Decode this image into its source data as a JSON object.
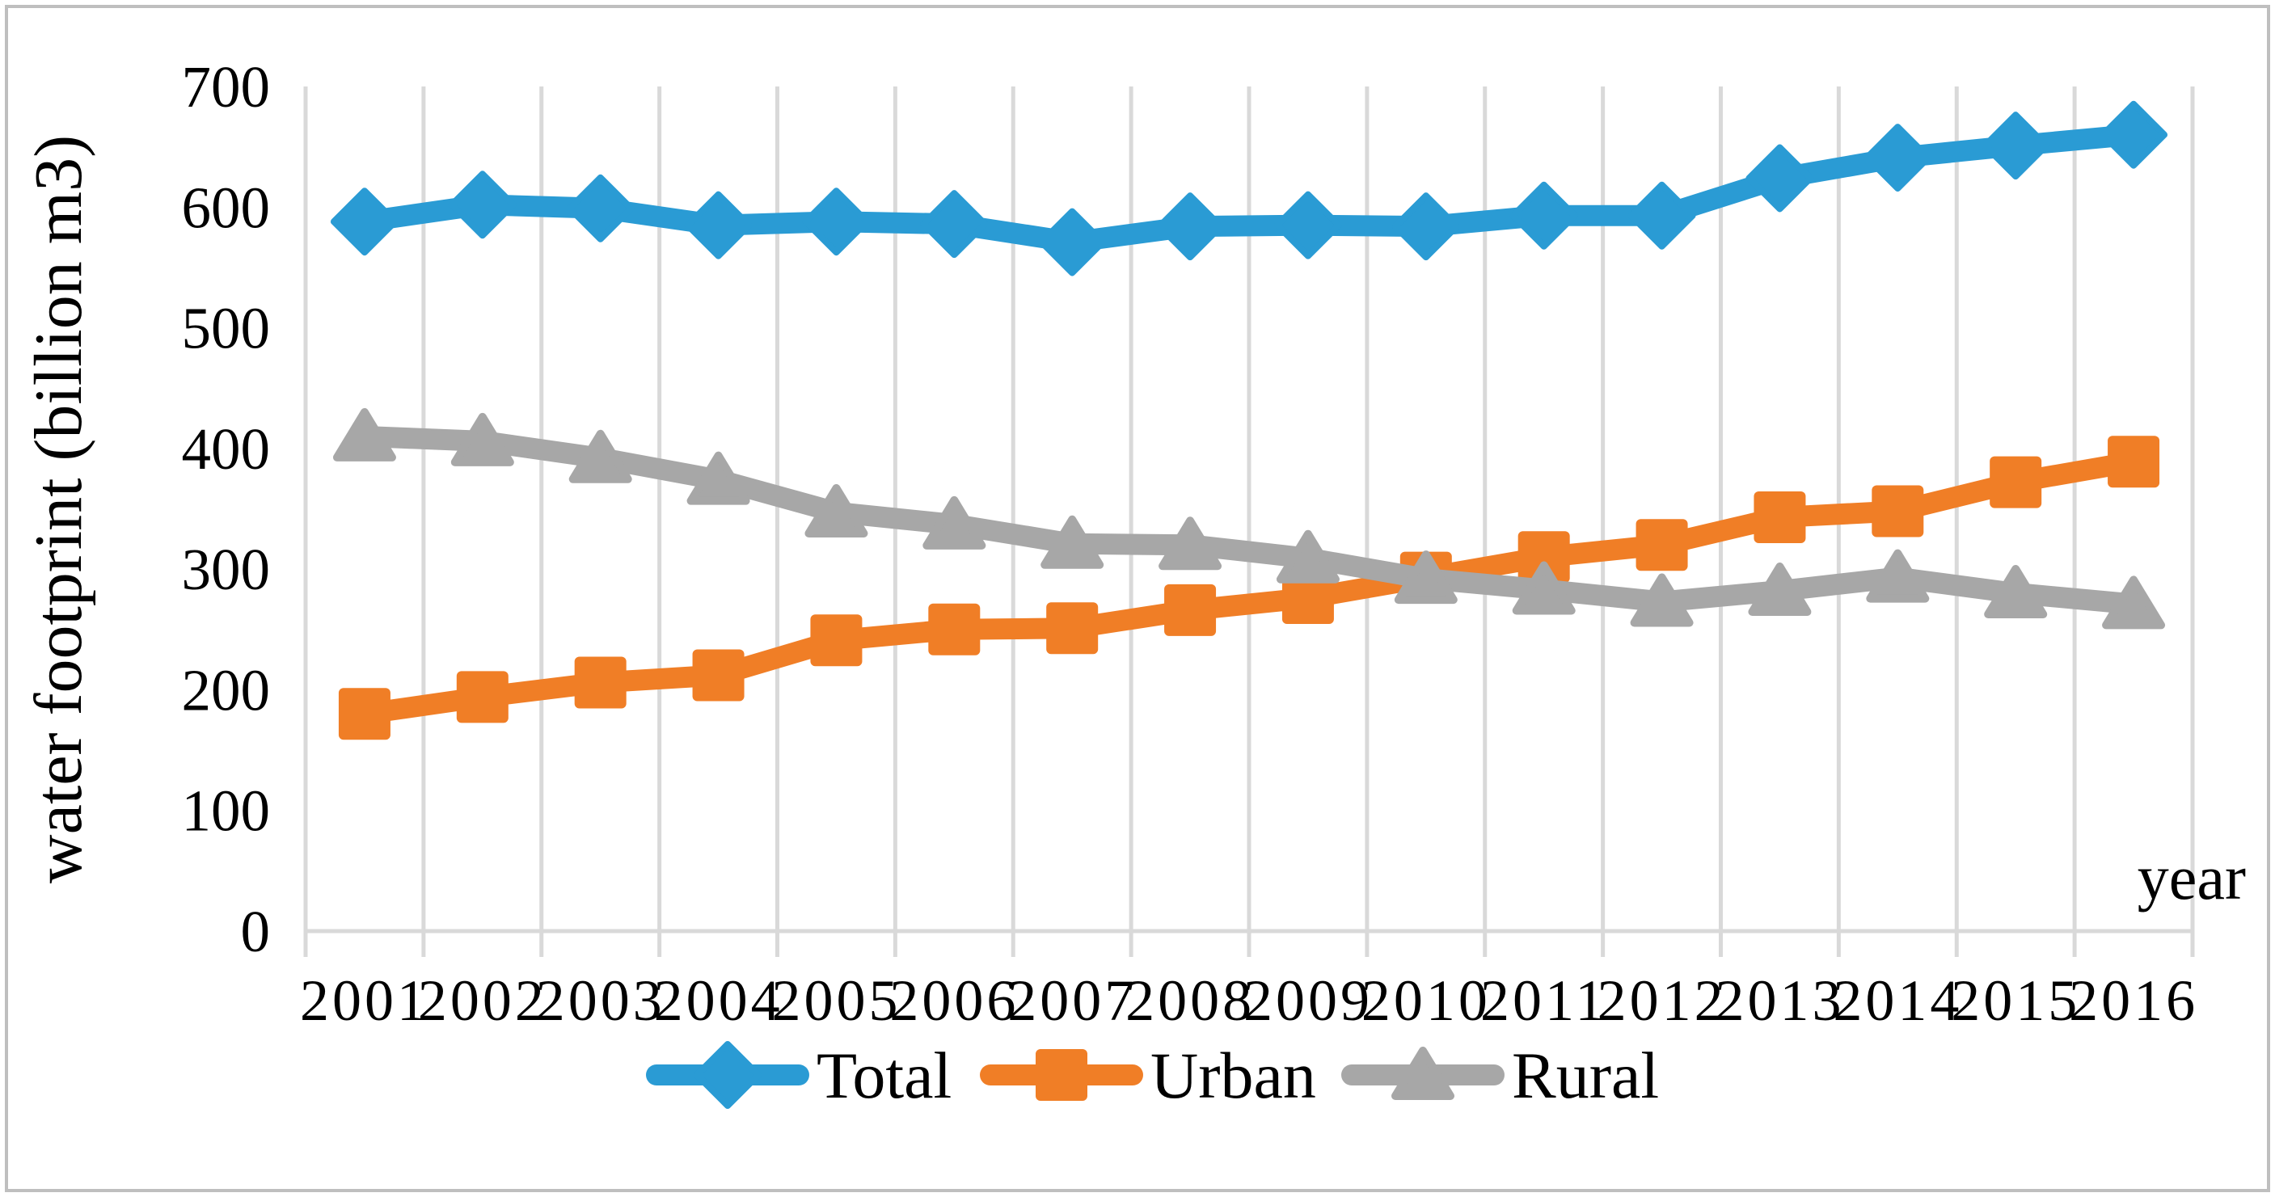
{
  "figure": {
    "kind": "line-chart-screenshot",
    "background": "#ffffff"
  },
  "colors": {
    "total_series": "#2A9BD4",
    "urban_series": "#F07E26",
    "rural_series": "#A7A7A7",
    "gridline": "#D9D9D9",
    "axis_line": "#D9D9D9",
    "outer_border": "#BFBFBF",
    "text": "#000000"
  },
  "chart_data": {
    "type": "line",
    "title": "",
    "xlabel": "year",
    "ylabel": "water footprint (billion m3)",
    "ylim": [
      0,
      700
    ],
    "ytick_step": 100,
    "yticks": [
      0,
      100,
      200,
      300,
      400,
      500,
      600,
      700
    ],
    "x": [
      "2001",
      "2002",
      "2003",
      "2004",
      "2005",
      "2006",
      "2007",
      "2008",
      "2009",
      "2010",
      "2011",
      "2012",
      "2013",
      "2014",
      "2015",
      "2016"
    ],
    "grid": {
      "vertical": true,
      "horizontal": false
    },
    "legend": {
      "position": "bottom",
      "entries": [
        "Total",
        "Urban",
        "Rural"
      ]
    },
    "series": [
      {
        "name": "Total",
        "marker": "diamond",
        "color": "#2A9BD4",
        "values": [
          588,
          602,
          599,
          585,
          588,
          586,
          571,
          584,
          585,
          584,
          593,
          593,
          624,
          641,
          651,
          660
        ]
      },
      {
        "name": "Urban",
        "marker": "square",
        "color": "#F07E26",
        "values": [
          180,
          194,
          206,
          212,
          241,
          250,
          251,
          266,
          276,
          293,
          310,
          320,
          343,
          348,
          372,
          389
        ]
      },
      {
        "name": "Rural",
        "marker": "triangle",
        "color": "#A7A7A7",
        "values": [
          410,
          406,
          392,
          374,
          347,
          337,
          321,
          320,
          309,
          292,
          283,
          273,
          282,
          293,
          280,
          271
        ]
      }
    ]
  }
}
